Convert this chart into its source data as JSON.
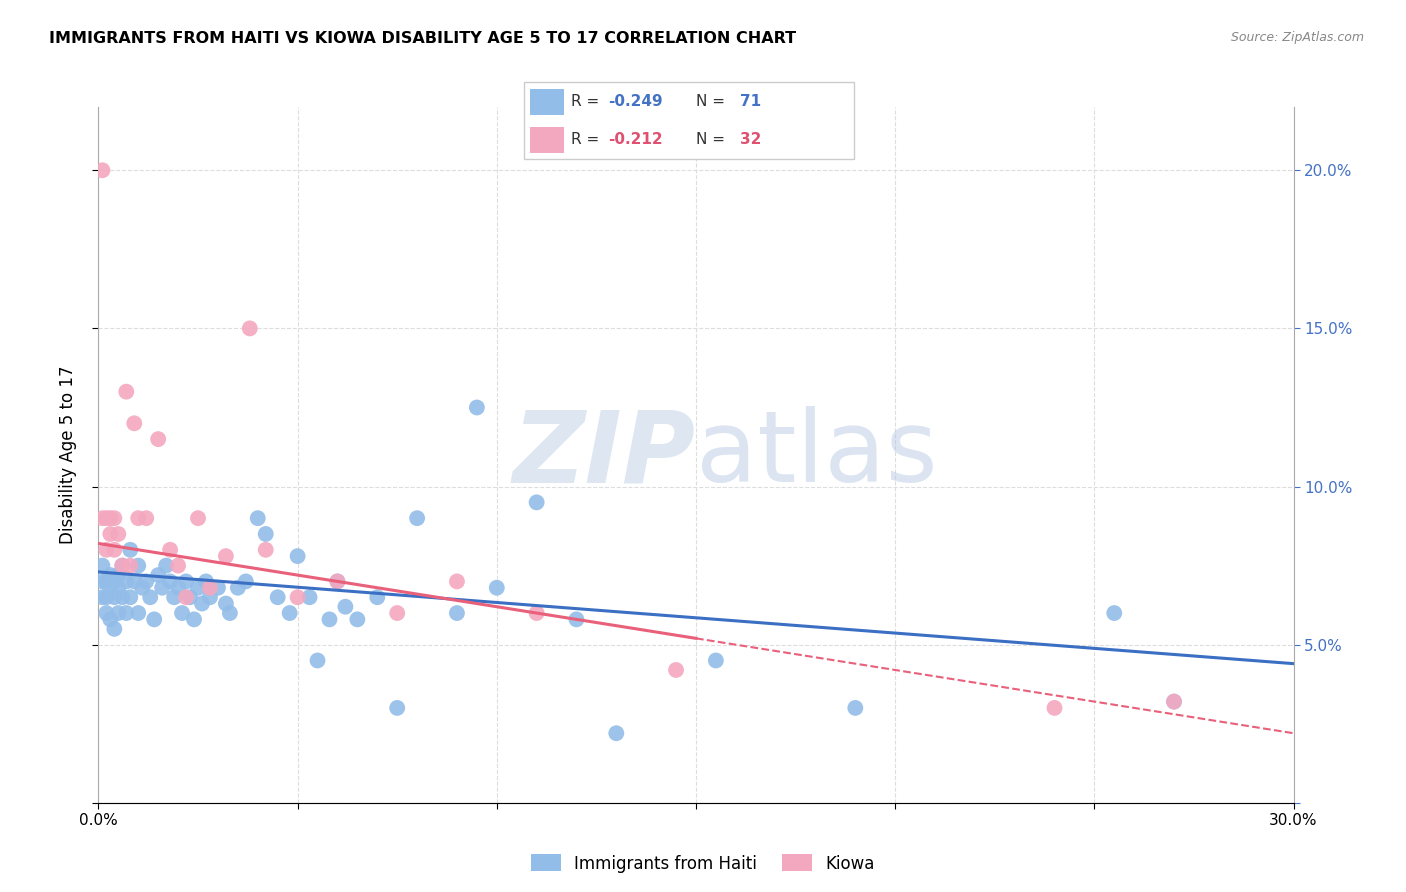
{
  "title": "IMMIGRANTS FROM HAITI VS KIOWA DISABILITY AGE 5 TO 17 CORRELATION CHART",
  "source": "Source: ZipAtlas.com",
  "ylabel": "Disability Age 5 to 17",
  "xlim": [
    0.0,
    0.3
  ],
  "ylim": [
    0.0,
    0.22
  ],
  "xticks": [
    0.0,
    0.05,
    0.1,
    0.15,
    0.2,
    0.25,
    0.3
  ],
  "xtick_labels": [
    "0.0%",
    "",
    "",
    "",
    "",
    "",
    "30.0%"
  ],
  "yticks": [
    0.0,
    0.05,
    0.1,
    0.15,
    0.2
  ],
  "ytick_labels_right": [
    "",
    "5.0%",
    "10.0%",
    "15.0%",
    "20.0%"
  ],
  "haiti_R": -0.249,
  "haiti_N": 71,
  "kiowa_R": -0.212,
  "kiowa_N": 32,
  "haiti_color": "#92BDE8",
  "kiowa_color": "#F4A8C0",
  "haiti_line_color": "#3A6FC4",
  "kiowa_line_color": "#E8607A",
  "background_color": "#FFFFFF",
  "grid_color": "#DDDDDD",
  "haiti_x": [
    0.001,
    0.001,
    0.001,
    0.002,
    0.002,
    0.002,
    0.003,
    0.003,
    0.003,
    0.004,
    0.004,
    0.004,
    0.005,
    0.005,
    0.005,
    0.006,
    0.006,
    0.007,
    0.007,
    0.008,
    0.008,
    0.009,
    0.01,
    0.01,
    0.011,
    0.012,
    0.013,
    0.014,
    0.015,
    0.016,
    0.017,
    0.018,
    0.019,
    0.02,
    0.021,
    0.022,
    0.023,
    0.024,
    0.025,
    0.026,
    0.027,
    0.028,
    0.03,
    0.032,
    0.033,
    0.035,
    0.037,
    0.04,
    0.042,
    0.045,
    0.048,
    0.05,
    0.053,
    0.055,
    0.058,
    0.06,
    0.062,
    0.065,
    0.07,
    0.075,
    0.08,
    0.09,
    0.095,
    0.1,
    0.11,
    0.12,
    0.13,
    0.155,
    0.19,
    0.255,
    0.27
  ],
  "haiti_y": [
    0.07,
    0.075,
    0.065,
    0.07,
    0.06,
    0.065,
    0.068,
    0.058,
    0.072,
    0.065,
    0.07,
    0.055,
    0.068,
    0.072,
    0.06,
    0.075,
    0.065,
    0.07,
    0.06,
    0.08,
    0.065,
    0.07,
    0.075,
    0.06,
    0.068,
    0.07,
    0.065,
    0.058,
    0.072,
    0.068,
    0.075,
    0.07,
    0.065,
    0.068,
    0.06,
    0.07,
    0.065,
    0.058,
    0.068,
    0.063,
    0.07,
    0.065,
    0.068,
    0.063,
    0.06,
    0.068,
    0.07,
    0.09,
    0.085,
    0.065,
    0.06,
    0.078,
    0.065,
    0.045,
    0.058,
    0.07,
    0.062,
    0.058,
    0.065,
    0.03,
    0.09,
    0.06,
    0.125,
    0.068,
    0.095,
    0.058,
    0.022,
    0.045,
    0.03,
    0.06,
    0.032
  ],
  "kiowa_x": [
    0.001,
    0.001,
    0.002,
    0.002,
    0.003,
    0.003,
    0.004,
    0.004,
    0.005,
    0.006,
    0.007,
    0.008,
    0.009,
    0.01,
    0.012,
    0.015,
    0.018,
    0.02,
    0.022,
    0.025,
    0.028,
    0.032,
    0.038,
    0.042,
    0.05,
    0.06,
    0.075,
    0.09,
    0.11,
    0.145,
    0.24,
    0.27
  ],
  "kiowa_y": [
    0.2,
    0.09,
    0.09,
    0.08,
    0.09,
    0.085,
    0.09,
    0.08,
    0.085,
    0.075,
    0.13,
    0.075,
    0.12,
    0.09,
    0.09,
    0.115,
    0.08,
    0.075,
    0.065,
    0.09,
    0.068,
    0.078,
    0.15,
    0.08,
    0.065,
    0.07,
    0.06,
    0.07,
    0.06,
    0.042,
    0.03,
    0.032
  ],
  "haiti_trendline_x0": 0.0,
  "haiti_trendline_y0": 0.073,
  "haiti_trendline_x1": 0.3,
  "haiti_trendline_y1": 0.044,
  "kiowa_trendline_x0": 0.0,
  "kiowa_trendline_y0": 0.082,
  "kiowa_trendline_x1": 0.15,
  "kiowa_trendline_y1": 0.052,
  "kiowa_trendline_dash_x1": 0.3,
  "kiowa_trendline_dash_y1": 0.022
}
